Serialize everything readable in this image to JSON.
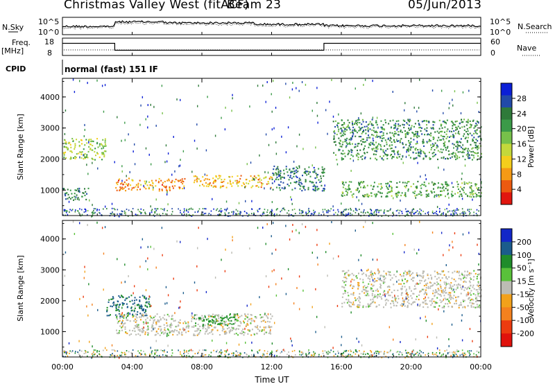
{
  "header": {
    "station": "Christmas Valley West (fitACF)",
    "beam": "Beam 23",
    "date": "05/Jun/2013"
  },
  "noise_panel": {
    "left_label": "N.Sky",
    "right_label": "N.Search",
    "ticks": [
      "10^5",
      "10^0"
    ],
    "right_ticks": [
      "10^5",
      "10^0"
    ]
  },
  "freq_panel": {
    "left_label_1": "Freq.",
    "left_label_2": "[MHz]",
    "right_label": "Nave",
    "left_ticks": [
      "18",
      "8"
    ],
    "right_ticks": [
      "60",
      "0"
    ],
    "freq_steps": [
      {
        "from": 0,
        "to": 3,
        "value": 15
      },
      {
        "from": 3,
        "to": 15,
        "value": 11
      },
      {
        "from": 15,
        "to": 24,
        "value": 15
      }
    ],
    "nave_value": 20
  },
  "cpid": {
    "label": "CPID",
    "value": "normal (fast) 151 IF"
  },
  "power_panel": {
    "ylabel": "Slant Range [km]",
    "yticks": [
      "4000",
      "3000",
      "2000",
      "1000"
    ],
    "colorbar_label": "Power [dB]",
    "colorbar_ticks": [
      "28",
      "24",
      "20",
      "16",
      "12",
      "8",
      "4"
    ],
    "colors": [
      "#0b1fd6",
      "#224aa8",
      "#2f7a3a",
      "#3b9a48",
      "#77c04a",
      "#c4d83b",
      "#f4ce1c",
      "#f59a14",
      "#ec5a10",
      "#e1160f"
    ]
  },
  "velocity_panel": {
    "ylabel": "Slant Range [km]",
    "yticks": [
      "4000",
      "3000",
      "2000",
      "1000"
    ],
    "colorbar_label": "Velocity [m s⁻¹]",
    "colorbar_ticks": [
      "200",
      "100",
      "50",
      "15",
      "-15",
      "-50",
      "-100",
      "-200"
    ],
    "colors": [
      "#1327c8",
      "#1b5c8c",
      "#1f8c2a",
      "#59c13a",
      "#bcbcb4",
      "#f2a11a",
      "#f4811e",
      "#ec3b10",
      "#e0120c"
    ]
  },
  "xaxis": {
    "label": "Time UT",
    "ticks": [
      "00:00",
      "04:00",
      "08:00",
      "12:00",
      "16:00",
      "20:00",
      "00:00"
    ]
  },
  "chart_data": {
    "type": "heatmap",
    "x_range_hours": [
      0,
      24
    ],
    "y_range_km": [
      180,
      4600
    ],
    "power_scatter_bands": [
      {
        "t0": 0,
        "t1": 2.5,
        "r0": 2000,
        "r1": 2700,
        "power_db": 16
      },
      {
        "t0": 0,
        "t1": 1.5,
        "r0": 700,
        "r1": 1100,
        "power_db": 8
      },
      {
        "t0": 3,
        "t1": 7,
        "r0": 1000,
        "r1": 1400,
        "power_db": 24
      },
      {
        "t0": 7.5,
        "t1": 12,
        "r0": 1100,
        "r1": 1500,
        "power_db": 22
      },
      {
        "t0": 12,
        "t1": 15,
        "r0": 1000,
        "r1": 1800,
        "power_db": 8
      },
      {
        "t0": 15.5,
        "t1": 24,
        "r0": 2000,
        "r1": 3300,
        "power_db": 10
      },
      {
        "t0": 16,
        "t1": 24,
        "r0": 800,
        "r1": 1300,
        "power_db": 12
      }
    ],
    "velocity_scatter_bands": [
      {
        "t0": 2.5,
        "t1": 5,
        "r0": 1500,
        "r1": 2200,
        "velocity_ms": 80
      },
      {
        "t0": 3,
        "t1": 12,
        "r0": 900,
        "r1": 1600,
        "velocity_ms": 0
      },
      {
        "t0": 7.5,
        "t1": 10,
        "r0": 1200,
        "r1": 1600,
        "velocity_ms": 40
      },
      {
        "t0": 16,
        "t1": 24,
        "r0": 1800,
        "r1": 3000,
        "velocity_ms": 0
      }
    ]
  }
}
